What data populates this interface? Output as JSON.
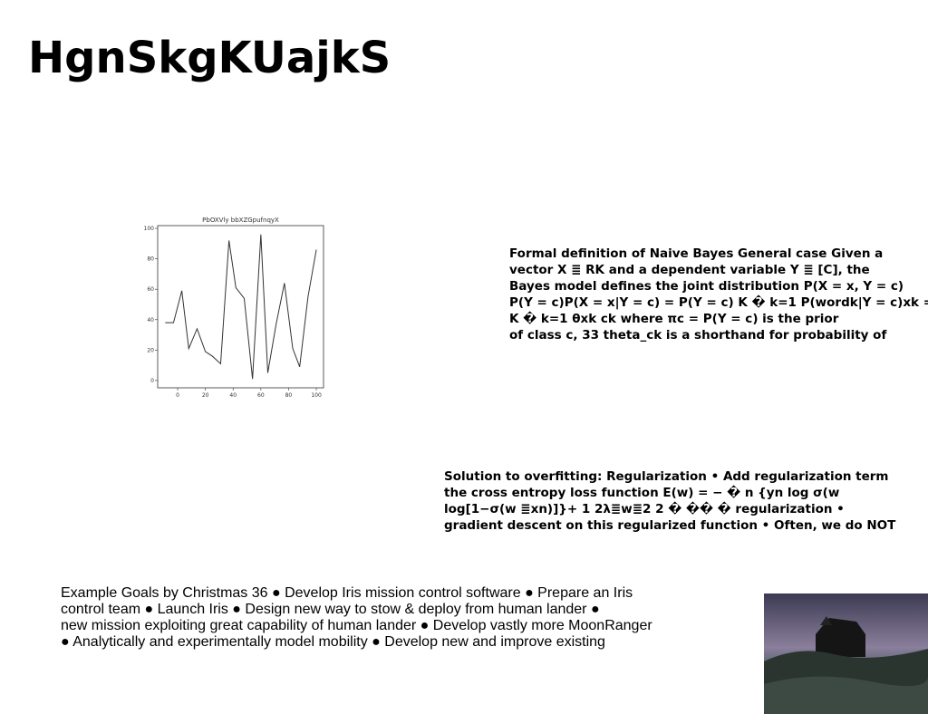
{
  "title": "HgnSkgKUajkS",
  "chart_data": {
    "type": "line",
    "title": "PbOXVly bbXZGpufnqyX",
    "x": [
      -9,
      -3,
      3,
      8,
      14,
      20,
      25,
      31,
      37,
      42,
      48,
      54,
      60,
      65,
      71,
      77,
      83,
      88,
      94,
      100
    ],
    "series": [
      {
        "color": "#333333",
        "values": [
          38,
          38,
          59,
          21,
          34,
          19,
          16,
          11,
          92,
          61,
          54,
          1,
          96,
          5,
          37,
          64,
          21,
          9,
          55,
          86
        ]
      }
    ],
    "xlim": [
      -14.4,
      105.2
    ],
    "ylim": [
      -4.8,
      101.8
    ],
    "xticks": [
      0,
      20,
      40,
      60,
      80,
      100
    ],
    "yticks": [
      0,
      20,
      40,
      60,
      80,
      100
    ]
  },
  "blocks": [
    {
      "lines": [
        "Formal definition of Naive Bayes General case Given a",
        "vector X ≣ RK and a dependent variable Y ≣ [C], the",
        "Bayes model defines the joint distribution P(X = x, Y = c)",
        "P(Y = c)P(X = x|Y = c) = P(Y = c) K � k=1 P(wordk|Y = c)xk =",
        "K � k=1 θxk ck where πc = P(Y = c) is the prior",
        "of class c, 33 theta_ck is a shorthand for probability of"
      ]
    },
    {
      "lines": [
        "Solution to overfitting: Regularization • Add regularization term",
        "the cross entropy loss function E(w) = − � n {yn log σ(w",
        "log[1−σ(w ≣xn)]}+ 1 2λ≣w≣2 2 � �� � regularization •",
        "gradient descent on this regularized function • Often, we do NOT"
      ]
    },
    {
      "lines": [
        "Example Goals by Christmas 36 ● Develop Iris mission control software ● Prepare an Iris",
        "control team ● Launch Iris ● Design new way to stow & deploy from human lander ●",
        "new mission exploiting great capability of human lander ● Develop vastly more MoonRanger",
        "● Analytically and experimentally model mobility ● Develop new and improve existing"
      ]
    }
  ]
}
